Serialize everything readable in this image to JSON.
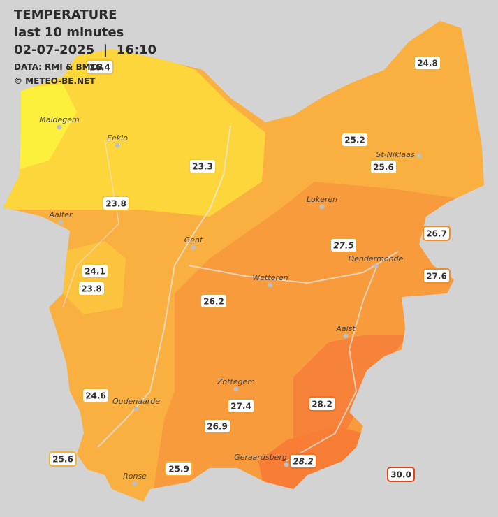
{
  "header": {
    "title": "TEMPERATURE",
    "subtitle": "last 10 minutes",
    "datetime": "02-07-2025  |  16:10",
    "source": "DATA: RMI & BMCB",
    "credit": "© METEO-BE.NET"
  },
  "cities": [
    "Maldegem",
    "Eeklo",
    "St-Niklaas",
    "Lokeren",
    "Aalter",
    "Gent",
    "Dendermonde",
    "Wetteren",
    "Aalst",
    "Zottegem",
    "Oudenaarde",
    "Geraardsberg",
    "Ronse"
  ],
  "stations": [
    "26.4",
    "24.8",
    "25.2",
    "23.3",
    "25.6",
    "23.8",
    "26.7",
    "27.5",
    "24.1",
    "27.6",
    "23.8",
    "26.2",
    "24.6",
    "27.4",
    "28.2",
    "26.9",
    "25.6",
    "25.9",
    "28.2",
    "30.0"
  ]
}
